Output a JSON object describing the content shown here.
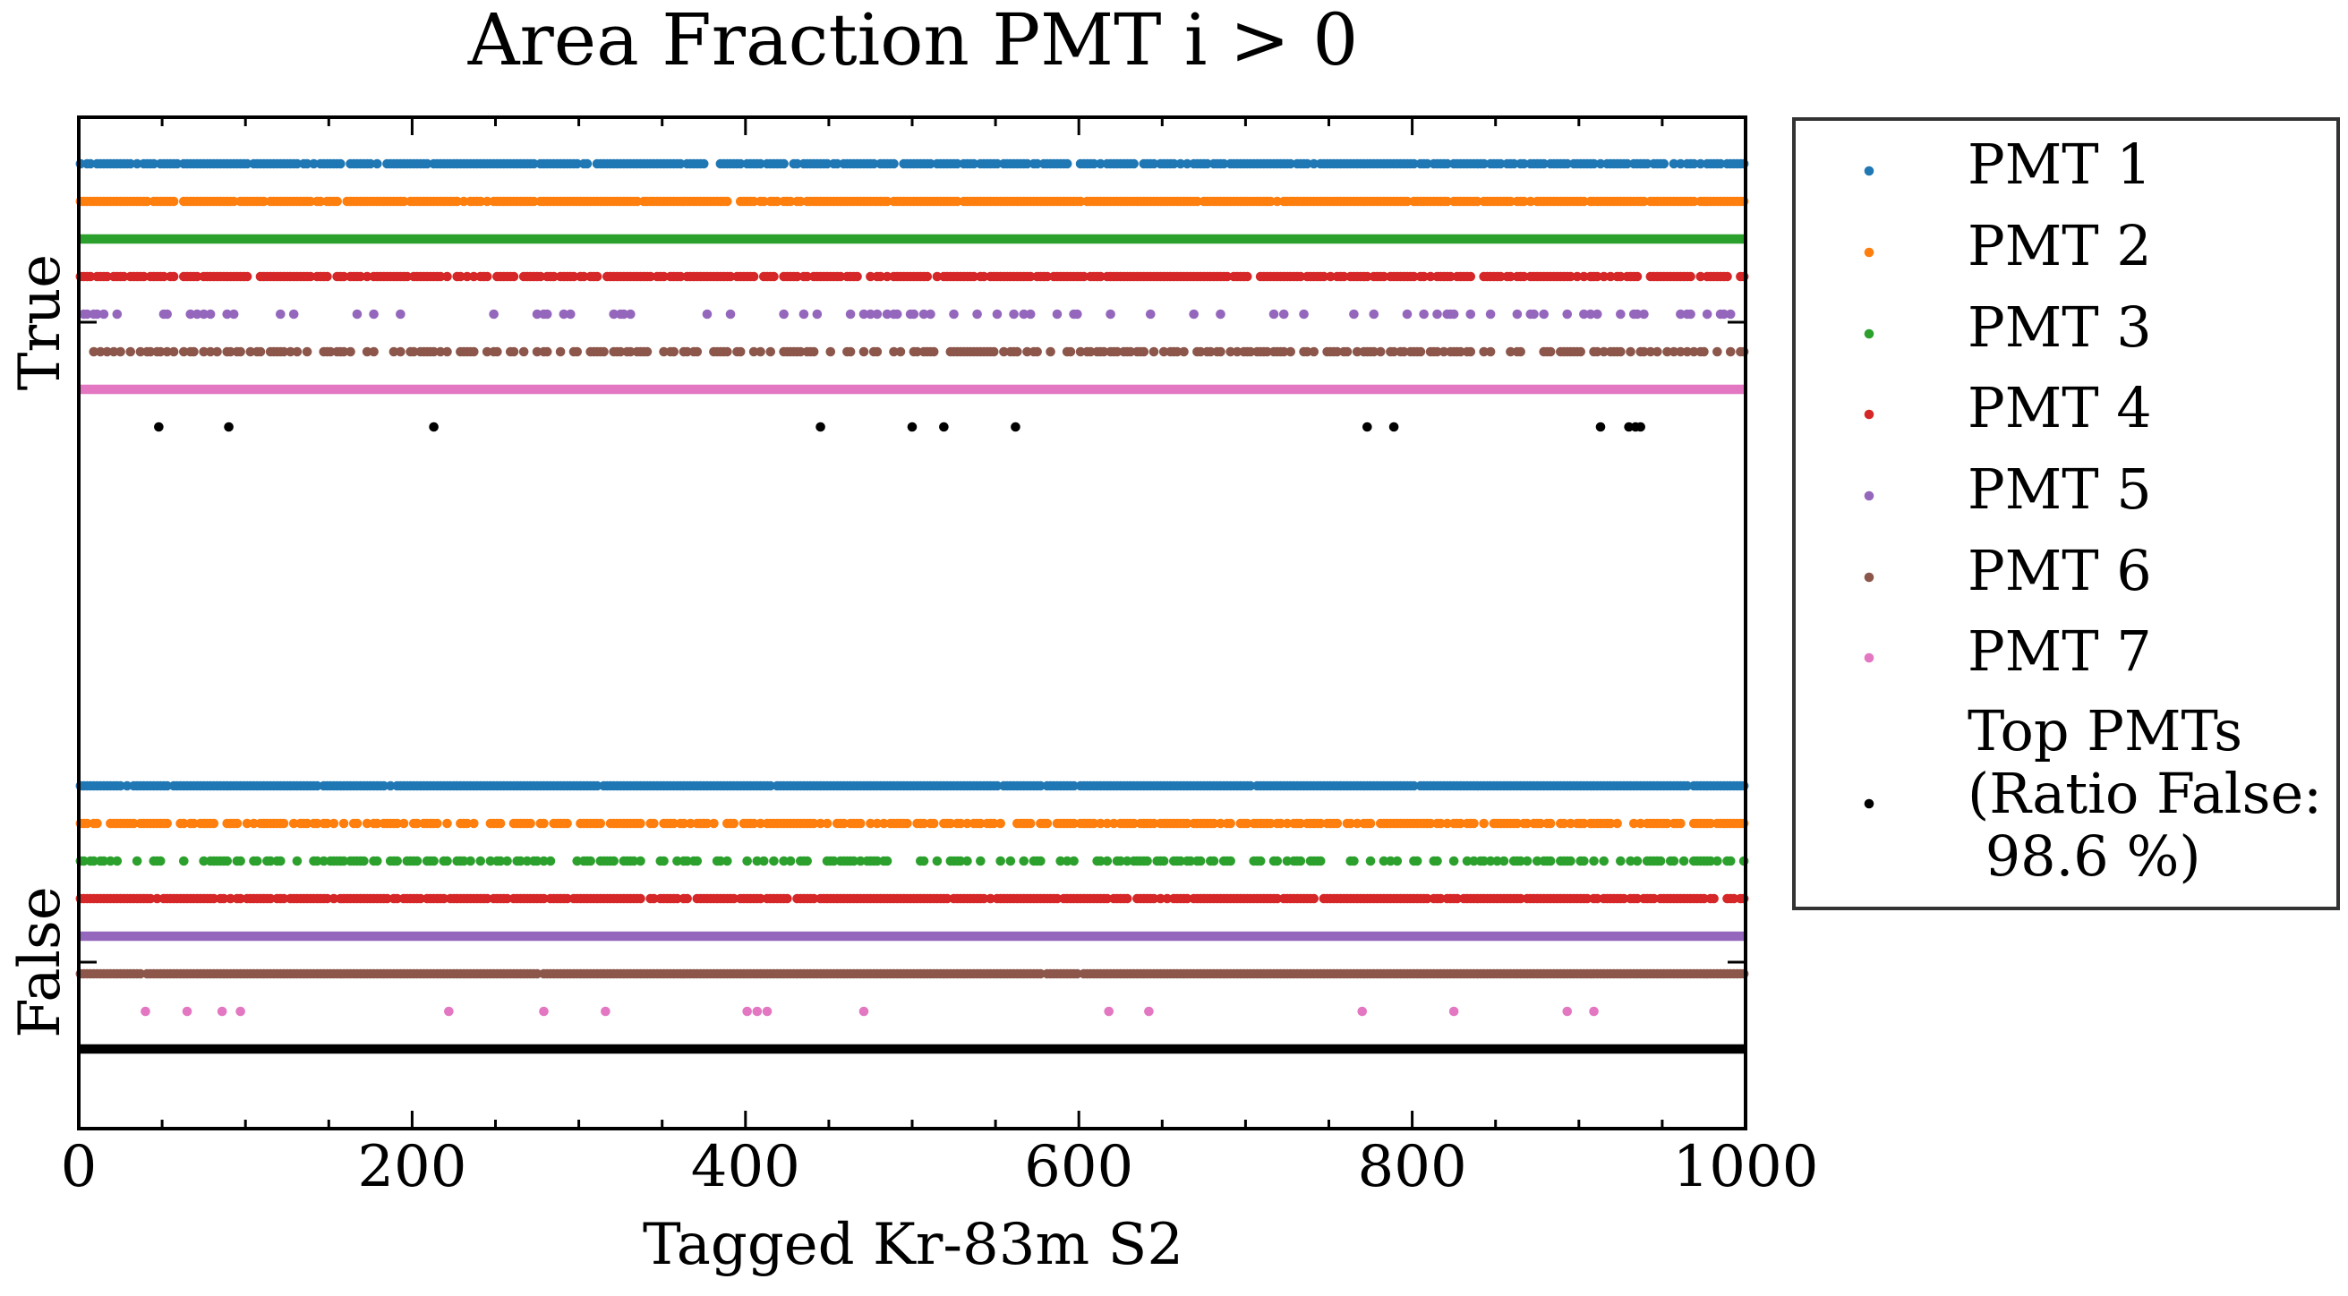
{
  "chart_data": {
    "type": "scatter",
    "title": "Area Fraction PMT i > 0",
    "xlabel": "Tagged Kr-83m S2",
    "ylabel": "",
    "xlim": [
      0,
      1000
    ],
    "x_ticks": [
      "0",
      "200",
      "400",
      "600",
      "800",
      "1000"
    ],
    "y_tick_labels": [
      "True",
      "False"
    ],
    "grid": false,
    "legend_position": "outside-right",
    "series": [
      {
        "name": "PMT 1",
        "color": "#1f77b4",
        "true_density": 0.85,
        "false_density": 0.97
      },
      {
        "name": "PMT 2",
        "color": "#ff7f0e",
        "true_density": 0.93,
        "false_density": 0.72
      },
      {
        "name": "PMT 3",
        "color": "#2ca02c",
        "true_density": 1.0,
        "false_density": 0.45
      },
      {
        "name": "PMT 4",
        "color": "#d62728",
        "true_density": 0.82,
        "false_density": 0.88
      },
      {
        "name": "PMT 5",
        "color": "#9467bd",
        "true_density": 0.18,
        "false_density": 1.0
      },
      {
        "name": "PMT 6",
        "color": "#8c564b",
        "true_density": 0.55,
        "false_density": 0.99
      },
      {
        "name": "PMT 7",
        "color": "#e377c2",
        "true_density": 1.0,
        "false_points": [
          40,
          65,
          86,
          97,
          222,
          279,
          316,
          401,
          407,
          413,
          471,
          618,
          642,
          770,
          825,
          893,
          909
        ]
      },
      {
        "name_lines": [
          "Top PMTs",
          "(Ratio False:",
          " 98.6 %)"
        ],
        "color": "#000000",
        "true_points": [
          48,
          90,
          213,
          445,
          500,
          519,
          562,
          773,
          789,
          913,
          930,
          934,
          937
        ],
        "false_density": 1.0
      }
    ]
  }
}
